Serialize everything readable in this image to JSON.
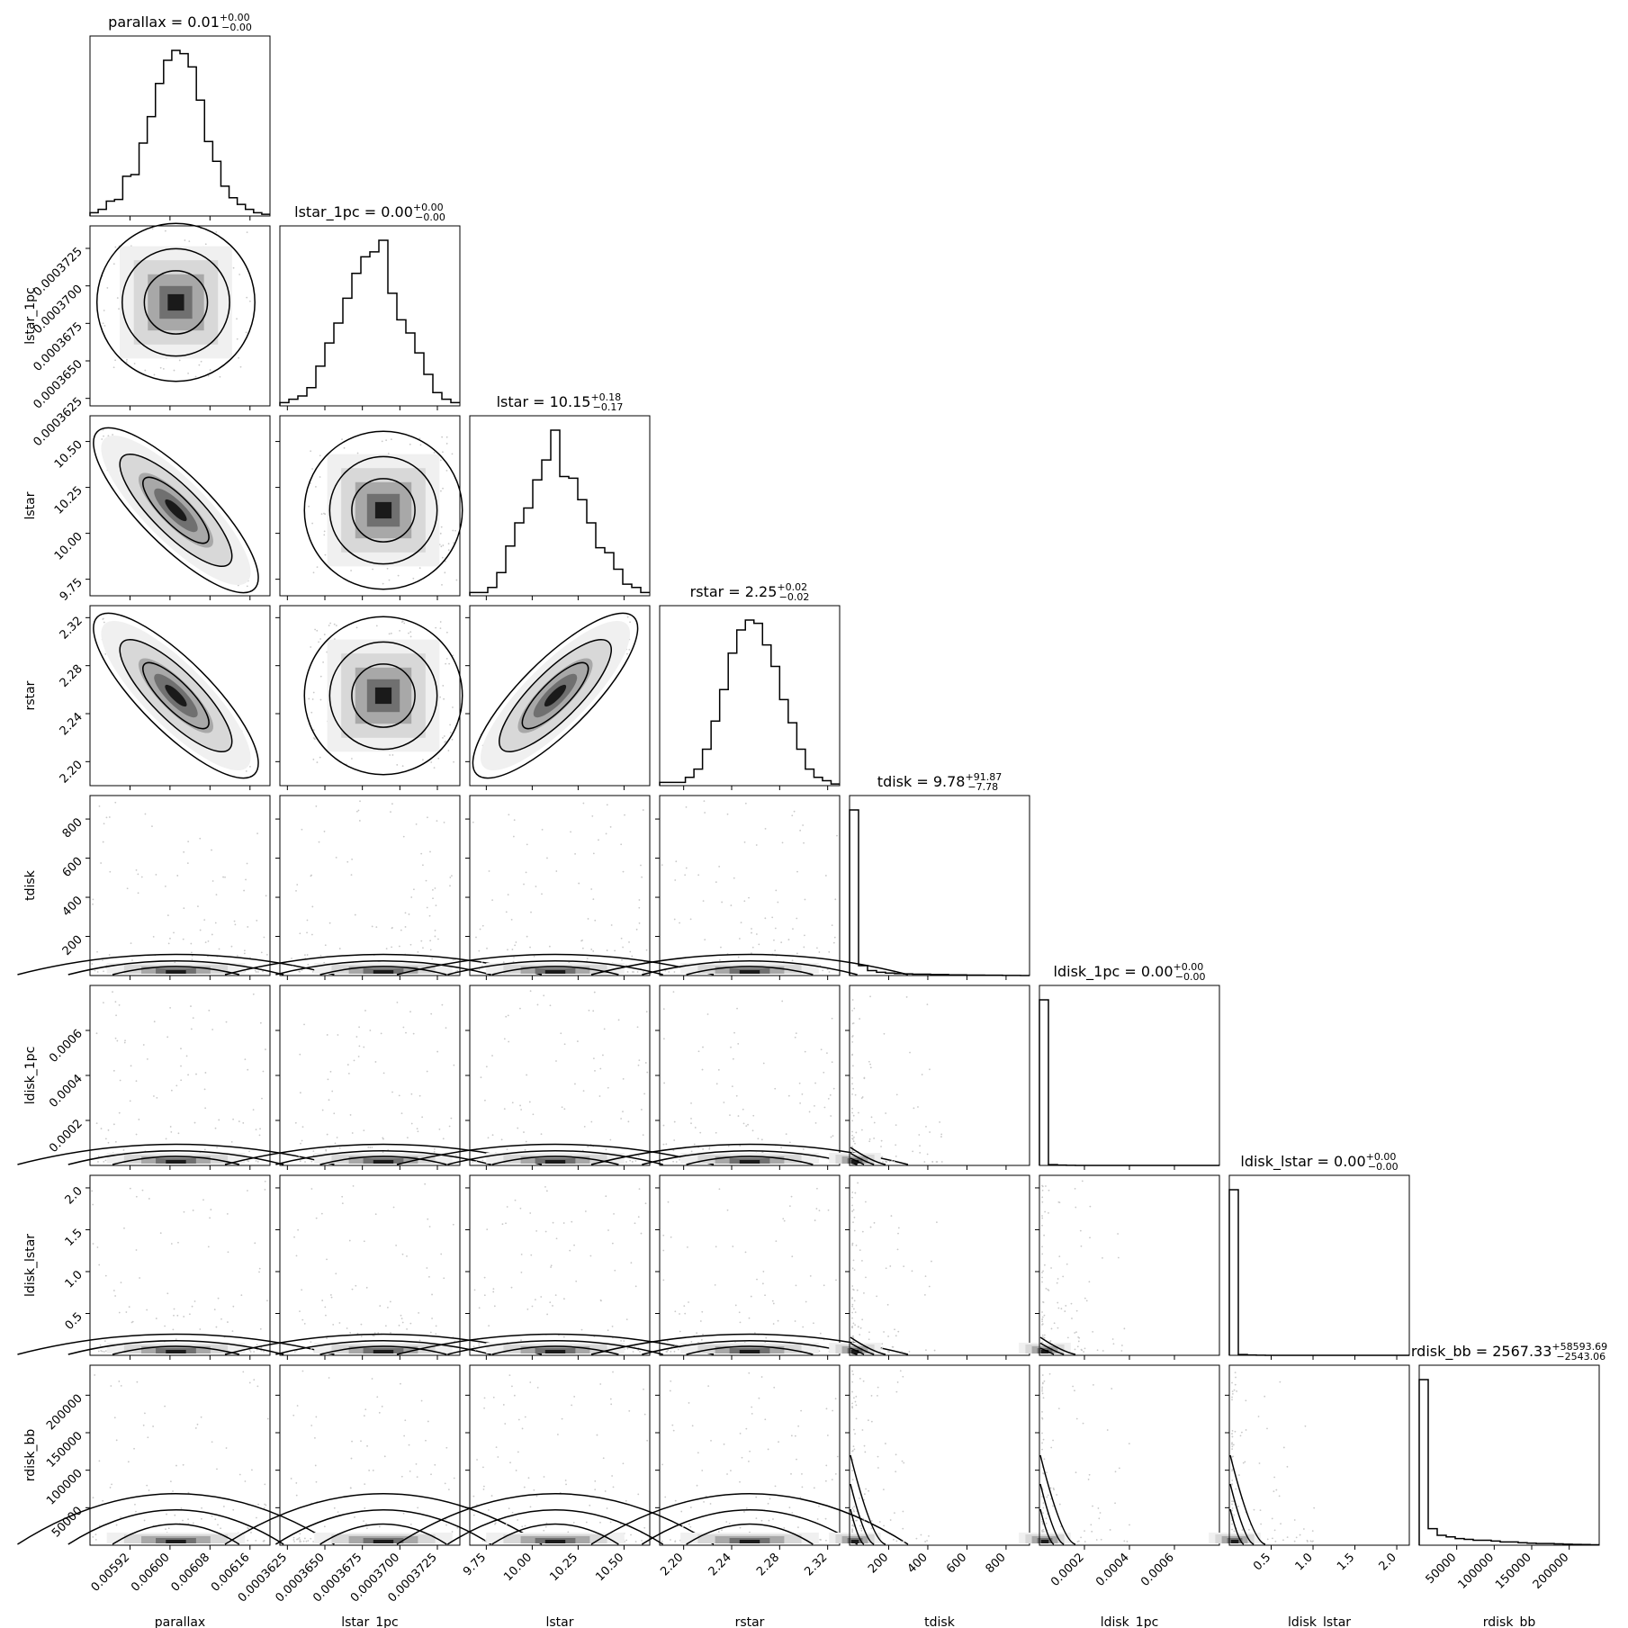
{
  "chart_data": {
    "type": "corner",
    "parameters": [
      {
        "name": "parallax",
        "title": "parallax = 0.01",
        "err_plus": "+0.00",
        "err_minus": "−0.00",
        "range": [
          0.00584,
          0.0062
        ],
        "ticks": [
          0.00592,
          0.006,
          0.00608,
          0.00616
        ],
        "tick_labels": [
          "0.00592",
          "0.00600",
          "0.00608",
          "0.00616"
        ],
        "hist": [
          0.02,
          0.04,
          0.09,
          0.1,
          0.24,
          0.25,
          0.44,
          0.6,
          0.8,
          0.94,
          1.0,
          0.98,
          0.9,
          0.7,
          0.45,
          0.33,
          0.18,
          0.11,
          0.07,
          0.04,
          0.02,
          0.01
        ]
      },
      {
        "name": "lstar_1pc",
        "title": "lstar_1pc = 0.00",
        "err_plus": "+0.00",
        "err_minus": "−0.00",
        "range": [
          0.000362,
          0.000374
        ],
        "ticks": [
          0.0003625,
          0.000365,
          0.0003675,
          0.00037,
          0.0003725
        ],
        "tick_labels": [
          "0.0003625",
          "0.0003650",
          "0.0003675",
          "0.0003700",
          "0.0003725"
        ],
        "hist": [
          0.02,
          0.04,
          0.06,
          0.11,
          0.24,
          0.38,
          0.5,
          0.65,
          0.8,
          0.9,
          0.93,
          1.0,
          0.68,
          0.52,
          0.44,
          0.32,
          0.19,
          0.08,
          0.04,
          0.02
        ]
      },
      {
        "name": "lstar",
        "title": "lstar = 10.15",
        "err_plus": "+0.18",
        "err_minus": "−0.17",
        "range": [
          9.66,
          10.64
        ],
        "ticks": [
          9.75,
          10.0,
          10.25,
          10.5
        ],
        "tick_labels": [
          "9.75",
          "10.00",
          "10.25",
          "10.50"
        ],
        "hist": [
          0.02,
          0.02,
          0.05,
          0.14,
          0.3,
          0.44,
          0.53,
          0.7,
          0.82,
          1.0,
          0.72,
          0.71,
          0.58,
          0.44,
          0.29,
          0.26,
          0.16,
          0.07,
          0.05,
          0.02
        ]
      },
      {
        "name": "rstar",
        "title": "rstar = 2.25",
        "err_plus": "+0.02",
        "err_minus": "−0.02",
        "range": [
          2.18,
          2.33
        ],
        "ticks": [
          2.2,
          2.24,
          2.28,
          2.32
        ],
        "tick_labels": [
          "2.20",
          "2.24",
          "2.28",
          "2.32"
        ],
        "hist": [
          0.02,
          0.02,
          0.02,
          0.05,
          0.1,
          0.22,
          0.39,
          0.58,
          0.8,
          0.94,
          1.0,
          0.98,
          0.85,
          0.72,
          0.52,
          0.38,
          0.22,
          0.1,
          0.05,
          0.03,
          0.01
        ]
      },
      {
        "name": "tdisk",
        "title": "tdisk = 9.78",
        "err_plus": "+91.87",
        "err_minus": "−7.78",
        "range": [
          0,
          920
        ],
        "ticks": [
          200,
          400,
          600,
          800
        ],
        "tick_labels": [
          "200",
          "400",
          "600",
          "800"
        ],
        "hist": [
          1.0,
          0.06,
          0.03,
          0.02,
          0.015,
          0.012,
          0.01,
          0.008,
          0.008,
          0.006,
          0.006,
          0.004,
          0.004,
          0.003,
          0.003,
          0.002,
          0.002,
          0.001,
          0.001,
          0.0
        ]
      },
      {
        "name": "ldisk_1pc",
        "title": "ldisk_1pc = 0.00",
        "err_plus": "+0.00",
        "err_minus": "−0.00",
        "range": [
          0,
          0.0008
        ],
        "ticks": [
          0.0002,
          0.0004,
          0.0006
        ],
        "tick_labels": [
          "0.0002",
          "0.0004",
          "0.0006"
        ],
        "hist": [
          1.0,
          0.005,
          0.002,
          0.001,
          0.0,
          0.0,
          0.0,
          0.0,
          0.0,
          0.0,
          0.0,
          0.0,
          0.0,
          0.0,
          0.0,
          0.0,
          0.0,
          0.0,
          0.0,
          0.0
        ]
      },
      {
        "name": "ldisk_lstar",
        "title": "ldisk_lstar = 0.00",
        "err_plus": "+0.00",
        "err_minus": "−0.00",
        "range": [
          0,
          2.15
        ],
        "ticks": [
          0.5,
          1.0,
          1.5,
          2.0
        ],
        "tick_labels": [
          "0.5",
          "1.0",
          "1.5",
          "2.0"
        ],
        "hist": [
          1.0,
          0.005,
          0.002,
          0.001,
          0.0,
          0.0,
          0.0,
          0.0,
          0.0,
          0.0,
          0.0,
          0.0,
          0.0,
          0.0,
          0.0,
          0.0,
          0.0,
          0.0,
          0.0,
          0.0
        ]
      },
      {
        "name": "rdisk_bb",
        "title": "rdisk_bb = 2567.33",
        "err_plus": "+58593.69",
        "err_minus": "−2543.06",
        "range": [
          0,
          240000
        ],
        "ticks": [
          50000,
          100000,
          150000,
          200000
        ],
        "tick_labels": [
          "50000",
          "100000",
          "150000",
          "200000"
        ],
        "hist": [
          1.0,
          0.1,
          0.06,
          0.05,
          0.04,
          0.035,
          0.03,
          0.03,
          0.025,
          0.02,
          0.02,
          0.015,
          0.012,
          0.01,
          0.01,
          0.008,
          0.006,
          0.005,
          0.004,
          0.003
        ]
      }
    ],
    "correlations": {
      "0-2": -0.95,
      "0-3": -0.85,
      "2-3": 0.85
    },
    "grid": false,
    "legend": "none"
  }
}
